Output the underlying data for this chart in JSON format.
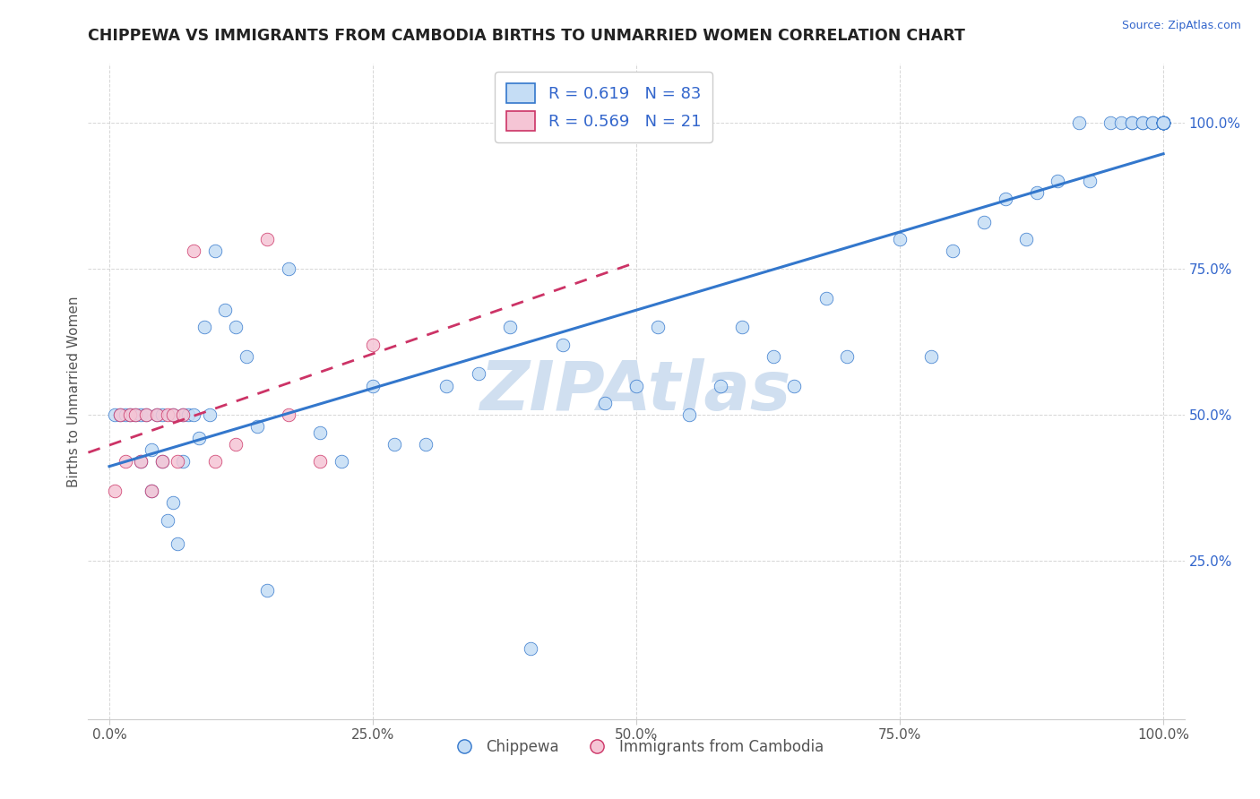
{
  "title": "CHIPPEWA VS IMMIGRANTS FROM CAMBODIA BIRTHS TO UNMARRIED WOMEN CORRELATION CHART",
  "source": "Source: ZipAtlas.com",
  "ylabel": "Births to Unmarried Women",
  "legend1_label": "R = 0.619   N = 83",
  "legend2_label": "R = 0.569   N = 21",
  "legend1_face": "#c5ddf5",
  "legend2_face": "#f5c5d5",
  "line1_color": "#3377cc",
  "line2_color": "#cc3366",
  "watermark": "ZIPAtlas",
  "watermark_color": "#d0dff0",
  "title_color": "#222222",
  "blue_x": [
    0.005,
    0.01,
    0.015,
    0.02,
    0.025,
    0.03,
    0.03,
    0.035,
    0.04,
    0.04,
    0.045,
    0.05,
    0.05,
    0.055,
    0.06,
    0.06,
    0.065,
    0.07,
    0.07,
    0.075,
    0.08,
    0.085,
    0.09,
    0.095,
    0.1,
    0.11,
    0.12,
    0.13,
    0.14,
    0.15,
    0.17,
    0.2,
    0.22,
    0.25,
    0.27,
    0.3,
    0.32,
    0.35,
    0.38,
    0.4,
    0.43,
    0.47,
    0.5,
    0.52,
    0.55,
    0.58,
    0.6,
    0.63,
    0.65,
    0.68,
    0.7,
    0.75,
    0.78,
    0.8,
    0.83,
    0.85,
    0.87,
    0.88,
    0.9,
    0.92,
    0.93,
    0.95,
    0.96,
    0.97,
    0.97,
    0.98,
    0.98,
    0.99,
    0.99,
    1.0,
    1.0,
    1.0,
    1.0,
    1.0,
    1.0,
    1.0,
    1.0,
    1.0,
    1.0,
    1.0,
    1.0,
    1.0,
    1.0
  ],
  "blue_y": [
    0.5,
    0.5,
    0.5,
    0.5,
    0.5,
    0.5,
    0.42,
    0.5,
    0.44,
    0.37,
    0.5,
    0.42,
    0.5,
    0.32,
    0.35,
    0.5,
    0.28,
    0.5,
    0.42,
    0.5,
    0.5,
    0.46,
    0.65,
    0.5,
    0.78,
    0.68,
    0.65,
    0.6,
    0.48,
    0.2,
    0.75,
    0.47,
    0.42,
    0.55,
    0.45,
    0.45,
    0.55,
    0.57,
    0.65,
    0.1,
    0.62,
    0.52,
    0.55,
    0.65,
    0.5,
    0.55,
    0.65,
    0.6,
    0.55,
    0.7,
    0.6,
    0.8,
    0.6,
    0.78,
    0.83,
    0.87,
    0.8,
    0.88,
    0.9,
    1.0,
    0.9,
    1.0,
    1.0,
    1.0,
    1.0,
    1.0,
    1.0,
    1.0,
    1.0,
    1.0,
    1.0,
    1.0,
    1.0,
    1.0,
    1.0,
    1.0,
    1.0,
    1.0,
    1.0,
    1.0,
    1.0,
    1.0,
    1.0
  ],
  "pink_x": [
    0.005,
    0.01,
    0.015,
    0.02,
    0.025,
    0.03,
    0.035,
    0.04,
    0.045,
    0.05,
    0.055,
    0.06,
    0.065,
    0.07,
    0.08,
    0.1,
    0.12,
    0.15,
    0.17,
    0.2,
    0.25
  ],
  "pink_y": [
    0.37,
    0.5,
    0.42,
    0.5,
    0.5,
    0.42,
    0.5,
    0.37,
    0.5,
    0.42,
    0.5,
    0.5,
    0.42,
    0.5,
    0.78,
    0.42,
    0.45,
    0.8,
    0.5,
    0.42,
    0.62
  ],
  "blue_line": [
    0.0,
    1.0,
    0.47,
    1.0
  ],
  "pink_line": [
    0.0,
    0.35,
    0.3,
    1.0
  ]
}
